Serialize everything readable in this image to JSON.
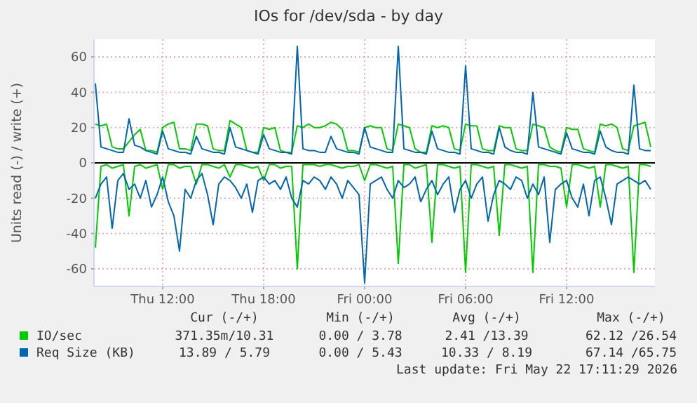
{
  "chart_data": {
    "type": "line",
    "title": "IOs for /dev/sda - by day",
    "ylabel": "Units read (-) / write (+)",
    "x": [
      "2026-05-21T08:00",
      "2026-05-21T08:20",
      "2026-05-21T08:40",
      "2026-05-21T09:00",
      "2026-05-21T09:20",
      "2026-05-21T09:40",
      "2026-05-21T10:00",
      "2026-05-21T10:20",
      "2026-05-21T10:40",
      "2026-05-21T11:00",
      "2026-05-21T11:20",
      "2026-05-21T11:40",
      "2026-05-21T12:00",
      "2026-05-21T12:20",
      "2026-05-21T12:40",
      "2026-05-21T13:00",
      "2026-05-21T13:20",
      "2026-05-21T13:40",
      "2026-05-21T14:00",
      "2026-05-21T14:20",
      "2026-05-21T14:40",
      "2026-05-21T15:00",
      "2026-05-21T15:20",
      "2026-05-21T15:40",
      "2026-05-21T16:00",
      "2026-05-21T16:20",
      "2026-05-21T16:40",
      "2026-05-21T17:00",
      "2026-05-21T17:20",
      "2026-05-21T17:40",
      "2026-05-21T18:00",
      "2026-05-21T18:20",
      "2026-05-21T18:40",
      "2026-05-21T19:00",
      "2026-05-21T19:20",
      "2026-05-21T19:40",
      "2026-05-21T20:00",
      "2026-05-21T20:20",
      "2026-05-21T20:40",
      "2026-05-21T21:00",
      "2026-05-21T21:20",
      "2026-05-21T21:40",
      "2026-05-21T22:00",
      "2026-05-21T22:20",
      "2026-05-21T22:40",
      "2026-05-21T23:00",
      "2026-05-21T23:20",
      "2026-05-21T23:40",
      "2026-05-22T00:00",
      "2026-05-22T00:20",
      "2026-05-22T00:40",
      "2026-05-22T01:00",
      "2026-05-22T01:20",
      "2026-05-22T01:40",
      "2026-05-22T02:00",
      "2026-05-22T02:20",
      "2026-05-22T02:40",
      "2026-05-22T03:00",
      "2026-05-22T03:20",
      "2026-05-22T03:40",
      "2026-05-22T04:00",
      "2026-05-22T04:20",
      "2026-05-22T04:40",
      "2026-05-22T05:00",
      "2026-05-22T05:20",
      "2026-05-22T05:40",
      "2026-05-22T06:00",
      "2026-05-22T06:20",
      "2026-05-22T06:40",
      "2026-05-22T07:00",
      "2026-05-22T07:20",
      "2026-05-22T07:40",
      "2026-05-22T08:00",
      "2026-05-22T08:20",
      "2026-05-22T08:40",
      "2026-05-22T09:00",
      "2026-05-22T09:20",
      "2026-05-22T09:40",
      "2026-05-22T10:00",
      "2026-05-22T10:20",
      "2026-05-22T10:40",
      "2026-05-22T11:00",
      "2026-05-22T11:20",
      "2026-05-22T11:40",
      "2026-05-22T12:00",
      "2026-05-22T12:20",
      "2026-05-22T12:40",
      "2026-05-22T13:00",
      "2026-05-22T13:20",
      "2026-05-22T13:40",
      "2026-05-22T14:00",
      "2026-05-22T14:20",
      "2026-05-22T14:40",
      "2026-05-22T15:00",
      "2026-05-22T15:20",
      "2026-05-22T15:40",
      "2026-05-22T16:00",
      "2026-05-22T16:20",
      "2026-05-22T16:40",
      "2026-05-22T17:00"
    ],
    "xlim": [
      "2026-05-21T07:55",
      "2026-05-22T17:15"
    ],
    "xticks": [
      {
        "value": "2026-05-21T12:00",
        "label": "Thu 12:00"
      },
      {
        "value": "2026-05-21T18:00",
        "label": "Thu 18:00"
      },
      {
        "value": "2026-05-22T00:00",
        "label": "Fri 00:00"
      },
      {
        "value": "2026-05-22T06:00",
        "label": "Fri 06:00"
      },
      {
        "value": "2026-05-22T12:00",
        "label": "Fri 12:00"
      }
    ],
    "ylim": [
      -70,
      70
    ],
    "yticks": [
      -60,
      -40,
      -20,
      0,
      20,
      40,
      60
    ],
    "grid": true,
    "legend": "bottom",
    "marker": "none",
    "line_style": "solid",
    "ref_lines": [
      {
        "axis": "y",
        "value": 0,
        "color": "#000000"
      }
    ],
    "series": [
      {
        "name": "IO/sec",
        "color": "#00cc00",
        "values": [
          22,
          21,
          22,
          9,
          8,
          8,
          12,
          16,
          19,
          7,
          7,
          6,
          20,
          22,
          23,
          8,
          8,
          7,
          22,
          22,
          21,
          8,
          7,
          7,
          24,
          22,
          20,
          7,
          6,
          6,
          20,
          19,
          20,
          7,
          6,
          6,
          21,
          20,
          22,
          20,
          20,
          21,
          23,
          22,
          19,
          7,
          7,
          6,
          20,
          21,
          20,
          20,
          8,
          7,
          22,
          21,
          20,
          8,
          6,
          6,
          21,
          20,
          21,
          20,
          8,
          7,
          22,
          21,
          21,
          8,
          7,
          7,
          21,
          20,
          20,
          8,
          7,
          7,
          22,
          21,
          20,
          9,
          7,
          6,
          20,
          19,
          19,
          8,
          7,
          6,
          22,
          21,
          22,
          20,
          8,
          7,
          21,
          22,
          23,
          9
        ]
      },
      {
        "color": "#00cc00",
        "values": [
          -48,
          -2,
          -1,
          -3,
          -2,
          -1,
          -30,
          -2,
          -1,
          -3,
          -2,
          -1,
          -15,
          -1,
          -1,
          -3,
          -2,
          -2,
          -12,
          -1,
          -1,
          -2,
          -3,
          -1,
          -8,
          -1,
          -1,
          -2,
          -3,
          -2,
          -10,
          -1,
          -1,
          -3,
          -2,
          -2,
          -60,
          -1,
          -1,
          -1,
          -2,
          -1,
          -1,
          -2,
          -3,
          -2,
          -2,
          -1,
          -10,
          -1,
          -1,
          -2,
          -3,
          -2,
          -57,
          -1,
          -1,
          -3,
          -2,
          -1,
          -45,
          -1,
          -1,
          -2,
          -3,
          -2,
          -62,
          -1,
          -1,
          -2,
          -3,
          -2,
          -41,
          -1,
          -1,
          -2,
          -3,
          -2,
          -62,
          -1,
          -1,
          -2,
          -2,
          -3,
          -25,
          -1,
          -1,
          -2,
          -3,
          -2,
          -25,
          -1,
          -1,
          -2,
          -3,
          -2,
          -62,
          -1,
          -1,
          -2
        ]
      },
      {
        "name": "Req Size (KB)",
        "color": "#0066b3",
        "values": [
          45,
          9,
          8,
          7,
          6,
          6,
          25,
          10,
          9,
          7,
          6,
          5,
          18,
          8,
          7,
          6,
          6,
          5,
          15,
          8,
          7,
          6,
          6,
          5,
          20,
          9,
          8,
          7,
          6,
          5,
          16,
          8,
          7,
          6,
          6,
          5,
          66,
          8,
          7,
          7,
          6,
          6,
          15,
          8,
          7,
          6,
          6,
          5,
          20,
          9,
          8,
          7,
          6,
          6,
          66,
          8,
          7,
          6,
          6,
          5,
          18,
          8,
          7,
          6,
          6,
          5,
          55,
          8,
          7,
          6,
          6,
          5,
          20,
          9,
          7,
          6,
          6,
          5,
          40,
          9,
          8,
          7,
          6,
          5,
          17,
          8,
          7,
          6,
          6,
          5,
          18,
          9,
          7,
          6,
          6,
          5,
          44,
          8,
          7,
          7
        ]
      },
      {
        "color": "#0066b3",
        "values": [
          -20,
          -12,
          -8,
          -37,
          -10,
          -6,
          -15,
          -12,
          -20,
          -10,
          -25,
          -18,
          -8,
          -22,
          -30,
          -50,
          -15,
          -20,
          -10,
          -6,
          -18,
          -35,
          -12,
          -8,
          -10,
          -14,
          -20,
          -12,
          -28,
          -10,
          -8,
          -12,
          -10,
          -15,
          -8,
          -20,
          -25,
          -10,
          -12,
          -8,
          -10,
          -15,
          -8,
          -12,
          -20,
          -10,
          -14,
          -18,
          -68,
          -12,
          -10,
          -8,
          -15,
          -20,
          -10,
          -14,
          -12,
          -8,
          -22,
          -15,
          -10,
          -18,
          -12,
          -8,
          -28,
          -15,
          -10,
          -20,
          -12,
          -8,
          -33,
          -18,
          -10,
          -12,
          -15,
          -8,
          -10,
          -20,
          -12,
          -18,
          -8,
          -45,
          -15,
          -12,
          -10,
          -20,
          -25,
          -12,
          -30,
          -10,
          -8,
          -20,
          -35,
          -12,
          -10,
          -8,
          -10,
          -12,
          -10,
          -15
        ]
      }
    ],
    "annotations": [
      "Cur (-/+)",
      "Min (-/+)",
      "Avg (-/+)",
      "Max (-/+)",
      "371.35m/10.31",
      "0.00 / 3.78",
      "2.41 /13.39",
      "62.12 /26.54",
      "13.89 / 5.79",
      "0.00 / 5.43",
      "10.33 / 8.19",
      "67.14 /65.75",
      "Last update: Fri May 22 17:11:29 2026"
    ]
  }
}
